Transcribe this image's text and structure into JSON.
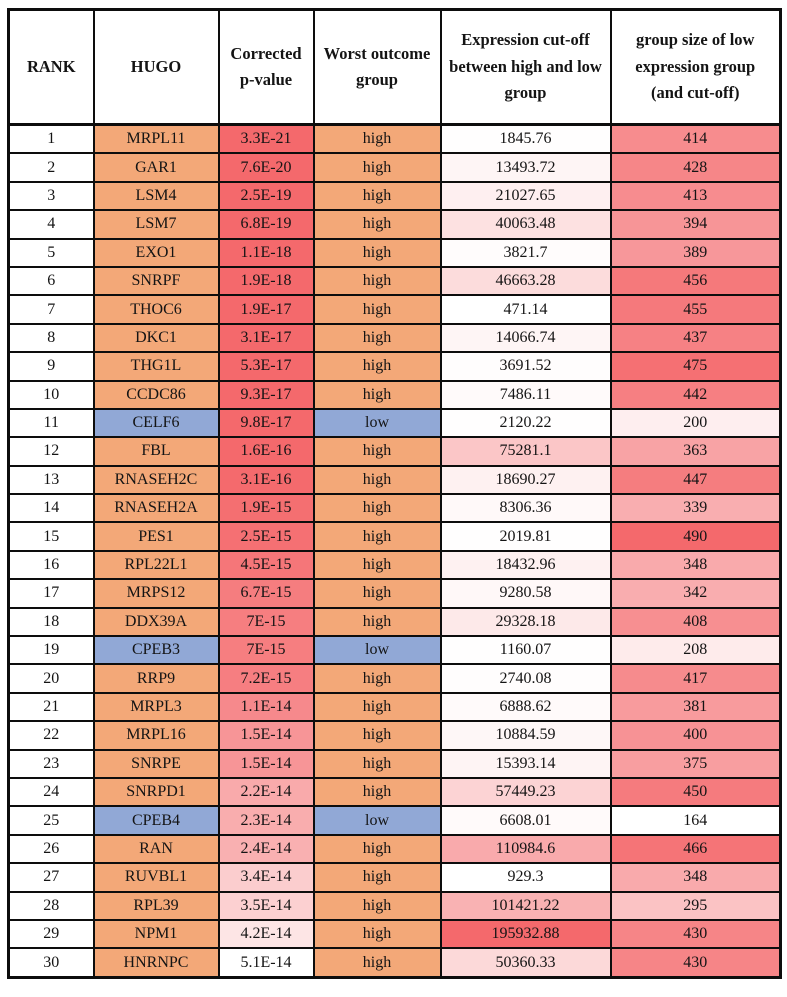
{
  "colors": {
    "orange": "#F3A878",
    "blue": "#91A8D6",
    "red": "#F4696C",
    "white": "#FFFFFF",
    "border": "#0D0D0D",
    "text": "#141414"
  },
  "table": {
    "columns": [
      {
        "key": "rank",
        "label": "RANK"
      },
      {
        "key": "hugo",
        "label": "HUGO"
      },
      {
        "key": "p_value",
        "label": "Corrected p-value"
      },
      {
        "key": "outcome",
        "label": "Worst outcome group"
      },
      {
        "key": "expression_cutoff",
        "label": "Expression cut-off between high and low group"
      },
      {
        "key": "group_size",
        "label": "group size of low expression group (and cut-off)"
      }
    ],
    "gradients": {
      "p_value": {
        "min": 0,
        "max": 5.1e-14,
        "invert": true
      },
      "expression_cutoff": {
        "min": 471.14,
        "max": 195932.88,
        "invert": false
      },
      "group_size": {
        "min": 164,
        "max": 490,
        "invert": false
      }
    },
    "rows": [
      {
        "rank": "1",
        "hugo": "MRPL11",
        "p_value": "3.3E-21",
        "outcome": "high",
        "expression_cutoff": "1845.76",
        "group_size": "414"
      },
      {
        "rank": "2",
        "hugo": "GAR1",
        "p_value": "7.6E-20",
        "outcome": "high",
        "expression_cutoff": "13493.72",
        "group_size": "428"
      },
      {
        "rank": "3",
        "hugo": "LSM4",
        "p_value": "2.5E-19",
        "outcome": "high",
        "expression_cutoff": "21027.65",
        "group_size": "413"
      },
      {
        "rank": "4",
        "hugo": "LSM7",
        "p_value": "6.8E-19",
        "outcome": "high",
        "expression_cutoff": "40063.48",
        "group_size": "394"
      },
      {
        "rank": "5",
        "hugo": "EXO1",
        "p_value": "1.1E-18",
        "outcome": "high",
        "expression_cutoff": "3821.7",
        "group_size": "389"
      },
      {
        "rank": "6",
        "hugo": "SNRPF",
        "p_value": "1.9E-18",
        "outcome": "high",
        "expression_cutoff": "46663.28",
        "group_size": "456"
      },
      {
        "rank": "7",
        "hugo": "THOC6",
        "p_value": "1.9E-17",
        "outcome": "high",
        "expression_cutoff": "471.14",
        "group_size": "455"
      },
      {
        "rank": "8",
        "hugo": "DKC1",
        "p_value": "3.1E-17",
        "outcome": "high",
        "expression_cutoff": "14066.74",
        "group_size": "437"
      },
      {
        "rank": "9",
        "hugo": "THG1L",
        "p_value": "5.3E-17",
        "outcome": "high",
        "expression_cutoff": "3691.52",
        "group_size": "475"
      },
      {
        "rank": "10",
        "hugo": "CCDC86",
        "p_value": "9.3E-17",
        "outcome": "high",
        "expression_cutoff": "7486.11",
        "group_size": "442"
      },
      {
        "rank": "11",
        "hugo": "CELF6",
        "p_value": "9.8E-17",
        "outcome": "low",
        "expression_cutoff": "2120.22",
        "group_size": "200"
      },
      {
        "rank": "12",
        "hugo": "FBL",
        "p_value": "1.6E-16",
        "outcome": "high",
        "expression_cutoff": "75281.1",
        "group_size": "363"
      },
      {
        "rank": "13",
        "hugo": "RNASEH2C",
        "p_value": "3.1E-16",
        "outcome": "high",
        "expression_cutoff": "18690.27",
        "group_size": "447"
      },
      {
        "rank": "14",
        "hugo": "RNASEH2A",
        "p_value": "1.9E-15",
        "outcome": "high",
        "expression_cutoff": "8306.36",
        "group_size": "339"
      },
      {
        "rank": "15",
        "hugo": "PES1",
        "p_value": "2.5E-15",
        "outcome": "high",
        "expression_cutoff": "2019.81",
        "group_size": "490"
      },
      {
        "rank": "16",
        "hugo": "RPL22L1",
        "p_value": "4.5E-15",
        "outcome": "high",
        "expression_cutoff": "18432.96",
        "group_size": "348"
      },
      {
        "rank": "17",
        "hugo": "MRPS12",
        "p_value": "6.7E-15",
        "outcome": "high",
        "expression_cutoff": "9280.58",
        "group_size": "342"
      },
      {
        "rank": "18",
        "hugo": "DDX39A",
        "p_value": "7E-15",
        "outcome": "high",
        "expression_cutoff": "29328.18",
        "group_size": "408"
      },
      {
        "rank": "19",
        "hugo": "CPEB3",
        "p_value": "7E-15",
        "outcome": "low",
        "expression_cutoff": "1160.07",
        "group_size": "208"
      },
      {
        "rank": "20",
        "hugo": "RRP9",
        "p_value": "7.2E-15",
        "outcome": "high",
        "expression_cutoff": "2740.08",
        "group_size": "417"
      },
      {
        "rank": "21",
        "hugo": "MRPL3",
        "p_value": "1.1E-14",
        "outcome": "high",
        "expression_cutoff": "6888.62",
        "group_size": "381"
      },
      {
        "rank": "22",
        "hugo": "MRPL16",
        "p_value": "1.5E-14",
        "outcome": "high",
        "expression_cutoff": "10884.59",
        "group_size": "400"
      },
      {
        "rank": "23",
        "hugo": "SNRPE",
        "p_value": "1.5E-14",
        "outcome": "high",
        "expression_cutoff": "15393.14",
        "group_size": "375"
      },
      {
        "rank": "24",
        "hugo": "SNRPD1",
        "p_value": "2.2E-14",
        "outcome": "high",
        "expression_cutoff": "57449.23",
        "group_size": "450"
      },
      {
        "rank": "25",
        "hugo": "CPEB4",
        "p_value": "2.3E-14",
        "outcome": "low",
        "expression_cutoff": "6608.01",
        "group_size": "164"
      },
      {
        "rank": "26",
        "hugo": "RAN",
        "p_value": "2.4E-14",
        "outcome": "high",
        "expression_cutoff": "110984.6",
        "group_size": "466"
      },
      {
        "rank": "27",
        "hugo": "RUVBL1",
        "p_value": "3.4E-14",
        "outcome": "high",
        "expression_cutoff": "929.3",
        "group_size": "348"
      },
      {
        "rank": "28",
        "hugo": "RPL39",
        "p_value": "3.5E-14",
        "outcome": "high",
        "expression_cutoff": "101421.22",
        "group_size": "295"
      },
      {
        "rank": "29",
        "hugo": "NPM1",
        "p_value": "4.2E-14",
        "outcome": "high",
        "expression_cutoff": "195932.88",
        "group_size": "430"
      },
      {
        "rank": "30",
        "hugo": "HNRNPC",
        "p_value": "5.1E-14",
        "outcome": "high",
        "expression_cutoff": "50360.33",
        "group_size": "430"
      }
    ]
  }
}
